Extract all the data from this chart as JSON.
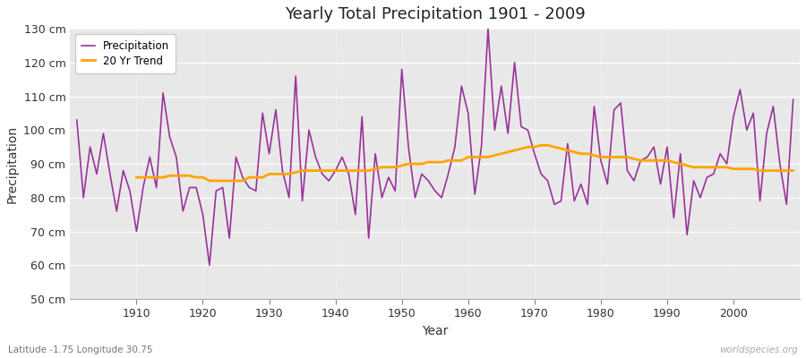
{
  "title": "Yearly Total Precipitation 1901 - 2009",
  "xlabel": "Year",
  "ylabel": "Precipitation",
  "lat_lon_label": "Latitude -1.75 Longitude 30.75",
  "source_label": "worldspecies.org",
  "years": [
    1901,
    1902,
    1903,
    1904,
    1905,
    1906,
    1907,
    1908,
    1909,
    1910,
    1911,
    1912,
    1913,
    1914,
    1915,
    1916,
    1917,
    1918,
    1919,
    1920,
    1921,
    1922,
    1923,
    1924,
    1925,
    1926,
    1927,
    1928,
    1929,
    1930,
    1931,
    1932,
    1933,
    1934,
    1935,
    1936,
    1937,
    1938,
    1939,
    1940,
    1941,
    1942,
    1943,
    1944,
    1945,
    1946,
    1947,
    1948,
    1949,
    1950,
    1951,
    1952,
    1953,
    1954,
    1955,
    1956,
    1957,
    1958,
    1959,
    1960,
    1961,
    1962,
    1963,
    1964,
    1965,
    1966,
    1967,
    1968,
    1969,
    1970,
    1971,
    1972,
    1973,
    1974,
    1975,
    1976,
    1977,
    1978,
    1979,
    1980,
    1981,
    1982,
    1983,
    1984,
    1985,
    1986,
    1987,
    1988,
    1989,
    1990,
    1991,
    1992,
    1993,
    1994,
    1995,
    1996,
    1997,
    1998,
    1999,
    2000,
    2001,
    2002,
    2003,
    2004,
    2005,
    2006,
    2007,
    2008,
    2009
  ],
  "precipitation": [
    103,
    80,
    95,
    87,
    99,
    87,
    76,
    88,
    82,
    70,
    83,
    92,
    83,
    111,
    98,
    92,
    76,
    83,
    83,
    75,
    60,
    82,
    83,
    68,
    92,
    86,
    83,
    82,
    105,
    93,
    106,
    88,
    80,
    116,
    79,
    100,
    92,
    87,
    85,
    88,
    92,
    87,
    75,
    104,
    68,
    93,
    80,
    86,
    82,
    118,
    95,
    80,
    87,
    85,
    82,
    80,
    87,
    95,
    113,
    105,
    81,
    95,
    130,
    100,
    113,
    99,
    120,
    101,
    100,
    93,
    87,
    85,
    78,
    79,
    96,
    79,
    84,
    78,
    107,
    91,
    84,
    106,
    108,
    88,
    85,
    91,
    92,
    95,
    84,
    95,
    74,
    93,
    69,
    85,
    80,
    86,
    87,
    93,
    90,
    104,
    112,
    100,
    105,
    79,
    99,
    107,
    90,
    78,
    109
  ],
  "trend_years": [
    1910,
    1911,
    1912,
    1913,
    1914,
    1915,
    1916,
    1917,
    1918,
    1919,
    1920,
    1921,
    1922,
    1923,
    1924,
    1925,
    1926,
    1927,
    1928,
    1929,
    1930,
    1931,
    1932,
    1933,
    1934,
    1935,
    1936,
    1937,
    1938,
    1939,
    1940,
    1941,
    1942,
    1943,
    1944,
    1945,
    1946,
    1947,
    1948,
    1949,
    1950,
    1951,
    1952,
    1953,
    1954,
    1955,
    1956,
    1957,
    1958,
    1959,
    1960,
    1961,
    1962,
    1963,
    1964,
    1965,
    1966,
    1967,
    1968,
    1969,
    1970,
    1971,
    1972,
    1973,
    1974,
    1975,
    1976,
    1977,
    1978,
    1979,
    1980,
    1981,
    1982,
    1983,
    1984,
    1985,
    1986,
    1987,
    1988,
    1989,
    1990,
    1991,
    1992,
    1993,
    1994,
    1995,
    1996,
    1997,
    1998,
    1999,
    2000,
    2001,
    2002,
    2003,
    2004,
    2005,
    2006,
    2007,
    2008,
    2009
  ],
  "trend_values": [
    86,
    86,
    86,
    86,
    86,
    86.5,
    86.5,
    86.5,
    86.5,
    86,
    86,
    85,
    85,
    85,
    85,
    85,
    85,
    86,
    86,
    86,
    87,
    87,
    87,
    87,
    87.5,
    88,
    88,
    88,
    88,
    88,
    88,
    88,
    88,
    88,
    88,
    88,
    88.5,
    89,
    89,
    89,
    89.5,
    90,
    90,
    90,
    90.5,
    90.5,
    90.5,
    91,
    91,
    91,
    92,
    92,
    92,
    92,
    92.5,
    93,
    93.5,
    94,
    94.5,
    95,
    95,
    95.5,
    95.5,
    95,
    94.5,
    94,
    93.5,
    93,
    93,
    92.5,
    92,
    92,
    92,
    92,
    92,
    91.5,
    91,
    91,
    91,
    91,
    91,
    90.5,
    90,
    89.5,
    89,
    89,
    89,
    89,
    89,
    89,
    88.5,
    88.5,
    88.5,
    88.5,
    88,
    88,
    88,
    88,
    88,
    88
  ],
  "precip_color": "#993399",
  "trend_color": "#FFA500",
  "fig_bg_color": "#ffffff",
  "plot_bg_color": "#e8e8e8",
  "ylim": [
    50,
    130
  ],
  "yticks": [
    50,
    60,
    70,
    80,
    90,
    100,
    110,
    120,
    130
  ],
  "xlim": [
    1900,
    2010
  ],
  "xticks": [
    1910,
    1920,
    1930,
    1940,
    1950,
    1960,
    1970,
    1980,
    1990,
    2000
  ]
}
